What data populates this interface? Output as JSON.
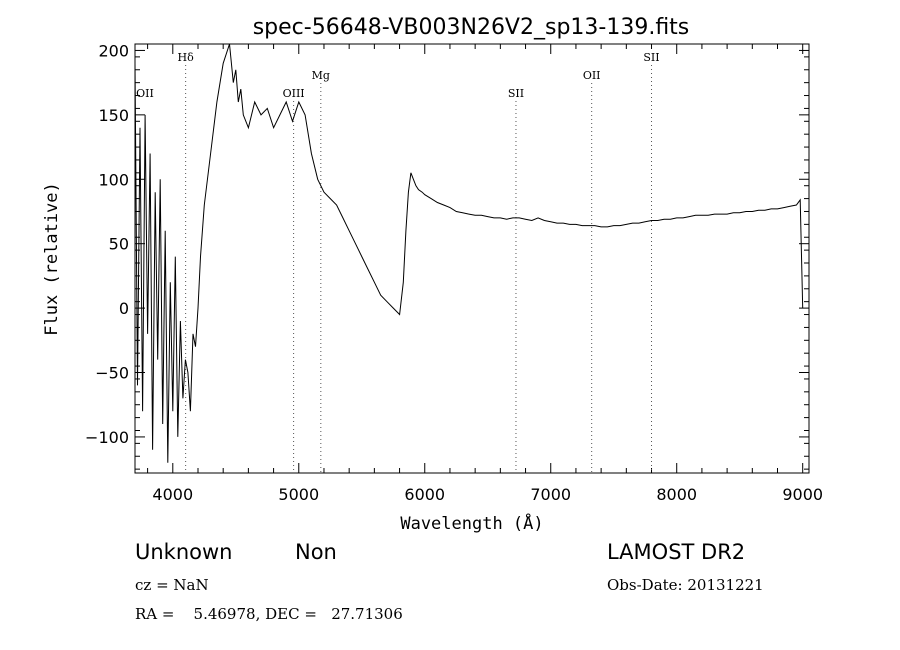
{
  "chart_data": {
    "type": "line",
    "title": "spec-56648-VB003N26V2_sp13-139.fits",
    "xlabel": "Wavelength (Å)",
    "ylabel": "Flux (relative)",
    "xlim": [
      3700,
      9050
    ],
    "ylim": [
      -128,
      205
    ],
    "xticks": [
      4000,
      5000,
      6000,
      7000,
      8000,
      9000
    ],
    "yticks": [
      -100,
      -50,
      0,
      50,
      100,
      150,
      200
    ],
    "grid": false,
    "line_color": "#000000",
    "series": [
      {
        "x": [
          3700,
          3720,
          3740,
          3760,
          3780,
          3800,
          3820,
          3840,
          3860,
          3880,
          3900,
          3920,
          3940,
          3960,
          3980,
          4000,
          4020,
          4040,
          4060,
          4080,
          4100,
          4120,
          4140,
          4160,
          4180,
          4200,
          4220,
          4250,
          4300,
          4350,
          4400,
          4450,
          4480,
          4500,
          4520,
          4540,
          4560,
          4600,
          4650,
          4700,
          4750,
          4800,
          4850,
          4900,
          4950,
          5000,
          5050,
          5100,
          5150,
          5200,
          5250,
          5300,
          5350,
          5400,
          5450,
          5500,
          5550,
          5600,
          5650,
          5700,
          5750,
          5800,
          5830,
          5850,
          5870,
          5890,
          5910,
          5930,
          5950,
          5980,
          6000,
          6050,
          6100,
          6150,
          6200,
          6250,
          6300,
          6350,
          6400,
          6450,
          6500,
          6550,
          6600,
          6650,
          6700,
          6750,
          6800,
          6850,
          6900,
          6950,
          7000,
          7050,
          7100,
          7150,
          7200,
          7250,
          7300,
          7350,
          7400,
          7450,
          7500,
          7550,
          7600,
          7650,
          7700,
          7750,
          7800,
          7850,
          7900,
          7950,
          8000,
          8050,
          8100,
          8150,
          8200,
          8250,
          8300,
          8350,
          8400,
          8450,
          8500,
          8550,
          8600,
          8650,
          8700,
          8750,
          8800,
          8850,
          8900,
          8950,
          8980,
          9000
        ],
        "y": [
          190,
          -60,
          140,
          -80,
          150,
          -20,
          120,
          -110,
          90,
          -40,
          100,
          -90,
          60,
          -120,
          20,
          -80,
          40,
          -100,
          -10,
          -70,
          -40,
          -50,
          -80,
          -20,
          -30,
          0,
          40,
          80,
          120,
          160,
          190,
          205,
          175,
          185,
          160,
          170,
          150,
          140,
          160,
          150,
          155,
          140,
          150,
          160,
          145,
          160,
          150,
          120,
          100,
          90,
          85,
          80,
          70,
          60,
          50,
          40,
          30,
          20,
          10,
          5,
          0,
          -5,
          20,
          60,
          90,
          105,
          100,
          95,
          92,
          90,
          88,
          85,
          82,
          80,
          78,
          75,
          74,
          73,
          72,
          72,
          71,
          70,
          70,
          69,
          70,
          70,
          69,
          68,
          70,
          68,
          67,
          66,
          66,
          65,
          65,
          64,
          64,
          64,
          63,
          63,
          64,
          64,
          65,
          66,
          66,
          67,
          68,
          68,
          69,
          69,
          70,
          70,
          71,
          72,
          72,
          72,
          73,
          73,
          73,
          74,
          74,
          75,
          75,
          76,
          76,
          77,
          77,
          78,
          79,
          80,
          84,
          0
        ]
      }
    ],
    "annotations": [
      {
        "label": "OII",
        "x": 3727,
        "level": "low"
      },
      {
        "label": "Hδ",
        "x": 4102,
        "level": "high"
      },
      {
        "label": "OIII",
        "x": 4959,
        "level": "low"
      },
      {
        "label": "Mg",
        "x": 5175,
        "level": "mid"
      },
      {
        "label": "SII",
        "x": 6724,
        "level": "low"
      },
      {
        "label": "OII",
        "x": 7325,
        "level": "mid"
      },
      {
        "label": "SII",
        "x": 7800,
        "level": "high"
      }
    ]
  },
  "info": {
    "class": "Unknown",
    "subclass": "Non",
    "survey": "LAMOST DR2",
    "cz": "cz = NaN",
    "obs_date": "Obs-Date: 20131221",
    "coords": "RA =    5.46978, DEC =   27.71306"
  }
}
